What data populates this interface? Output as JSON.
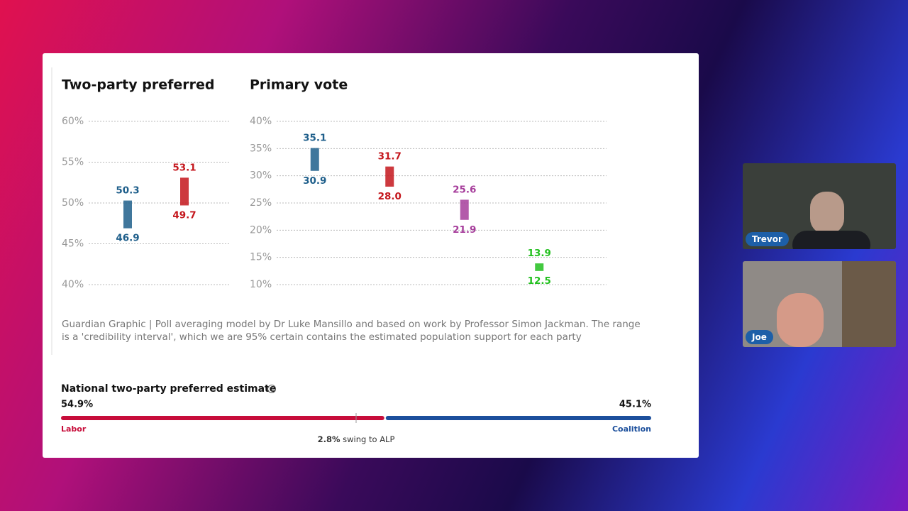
{
  "chart_data": [
    {
      "type": "range",
      "title": "Two-party preferred",
      "ylim": [
        40,
        60
      ],
      "yticks": [
        {
          "value": 40,
          "label": "40%"
        },
        {
          "value": 45,
          "label": "45%"
        },
        {
          "value": 50,
          "label": "50%"
        },
        {
          "value": 55,
          "label": "55%"
        },
        {
          "value": 60,
          "label": "60%"
        }
      ],
      "grid": true,
      "ranges": [
        {
          "color": "#1f5f8b",
          "low": 46.9,
          "high": 50.3
        },
        {
          "color": "#c4161c",
          "low": 49.7,
          "high": 53.1
        }
      ]
    },
    {
      "type": "range",
      "title": "Primary vote",
      "ylim": [
        10,
        40
      ],
      "yticks": [
        {
          "value": 10,
          "label": "10%"
        },
        {
          "value": 15,
          "label": "15%"
        },
        {
          "value": 20,
          "label": "20%"
        },
        {
          "value": 25,
          "label": "25%"
        },
        {
          "value": 30,
          "label": "30%"
        },
        {
          "value": 35,
          "label": "35%"
        },
        {
          "value": 40,
          "label": "40%"
        }
      ],
      "grid": true,
      "ranges": [
        {
          "color": "#1f5f8b",
          "low": 30.9,
          "high": 35.1
        },
        {
          "color": "#c4161c",
          "low": 28.0,
          "low_label": "28.0",
          "high": 31.7
        },
        {
          "color": "#a63d9b",
          "low": 21.9,
          "high": 25.6
        },
        {
          "color": "#22c01e",
          "low": 12.5,
          "high": 13.9
        }
      ]
    }
  ],
  "caption": "Guardian Graphic | Poll averaging model by Dr Luke Mansillo and based on work by Professor Simon Jackman. The range is a 'credibility interval', which we are 95% certain contains the estimated population support for each party",
  "estimate": {
    "title": "National two-party preferred estimate",
    "left": {
      "name": "Labor",
      "value": 54.9,
      "label": "54.9%",
      "color": "#c70d3a"
    },
    "right": {
      "name": "Coalition",
      "value": 45.1,
      "label": "45.1%",
      "color": "#1c4f9c"
    },
    "swing": {
      "value": 2.8,
      "label": "2.8%",
      "text": "swing to ALP"
    }
  },
  "participants": [
    "Trevor",
    "Joe"
  ]
}
